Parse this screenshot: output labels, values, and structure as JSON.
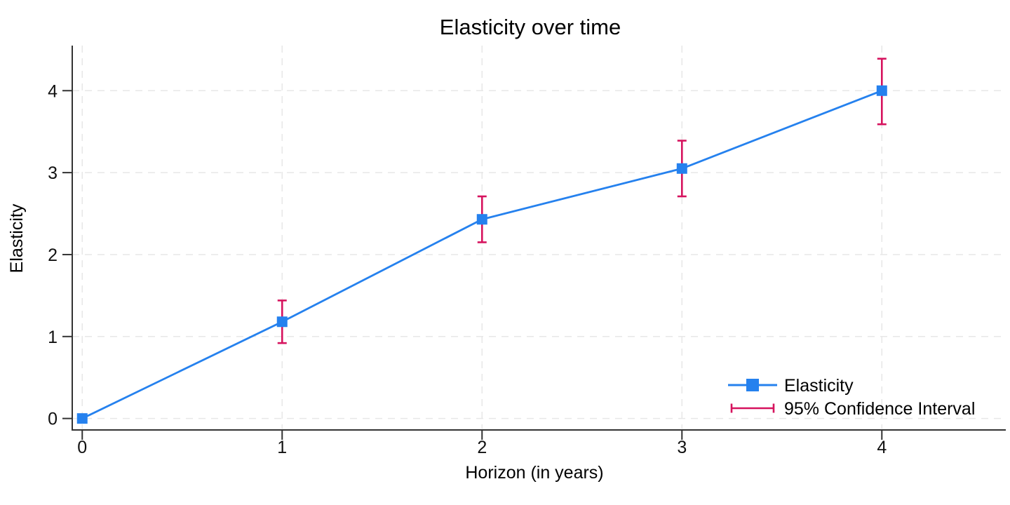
{
  "chart_data": {
    "type": "line",
    "title": "Elasticity over time",
    "xlabel": "Horizon (in years)",
    "ylabel": "Elasticity",
    "x": [
      0,
      1,
      2,
      3,
      4
    ],
    "series": [
      {
        "name": "Elasticity",
        "values": [
          0,
          1.18,
          2.43,
          3.05,
          4.0
        ],
        "ci_low": [
          null,
          0.92,
          2.15,
          2.71,
          3.59
        ],
        "ci_high": [
          null,
          1.44,
          2.71,
          3.39,
          4.39
        ]
      }
    ],
    "xticks": [
      0,
      1,
      2,
      3,
      4
    ],
    "yticks": [
      0,
      1,
      2,
      3,
      4
    ],
    "xlim": [
      -0.05,
      4.62
    ],
    "ylim": [
      -0.14,
      4.55
    ],
    "grid": "dashed-both",
    "legend": {
      "position": "lower-right",
      "border": "none",
      "entries": [
        {
          "label": "Elasticity",
          "symbol": "line-with-square-marker",
          "color": "#2581ee"
        },
        {
          "label": "95% Confidence Interval",
          "symbol": "error-bar",
          "color": "#d6135e"
        }
      ]
    },
    "colors": {
      "line": "#2581ee",
      "marker": "#2581ee",
      "ci": "#d6135e",
      "grid": "#e7e7e7",
      "axis": "#333333",
      "text": "#000000"
    }
  }
}
